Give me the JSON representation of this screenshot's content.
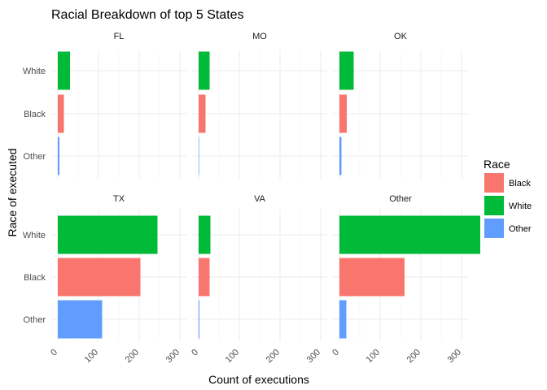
{
  "chart_data": {
    "type": "bar",
    "orientation": "horizontal",
    "title": "Racial Breakdown of top 5 States",
    "xlabel": "Count of executions",
    "ylabel": "Race of executed",
    "xlim": [
      0,
      330
    ],
    "x_ticks": [
      0,
      100,
      200,
      300
    ],
    "categories": [
      "White",
      "Black",
      "Other"
    ],
    "grid": true,
    "legend": {
      "title": "Race",
      "position": "right",
      "items": [
        {
          "label": "Black",
          "color": "#F8766D"
        },
        {
          "label": "White",
          "color": "#00BA38"
        },
        {
          "label": "Other",
          "color": "#619CFF"
        }
      ]
    },
    "colors": {
      "White": "#00BA38",
      "Black": "#F8766D",
      "Other": "#619CFF"
    },
    "facets": [
      {
        "name": "FL",
        "values": {
          "White": 30,
          "Black": 15,
          "Other": 4
        }
      },
      {
        "name": "MO",
        "values": {
          "White": 27,
          "Black": 17,
          "Other": 1
        }
      },
      {
        "name": "OK",
        "values": {
          "White": 35,
          "Black": 18,
          "Other": 5
        }
      },
      {
        "name": "TX",
        "values": {
          "White": 245,
          "Black": 203,
          "Other": 109
        }
      },
      {
        "name": "VA",
        "values": {
          "White": 29,
          "Black": 27,
          "Other": 2
        }
      },
      {
        "name": "Other",
        "values": {
          "White": 346,
          "Black": 160,
          "Other": 17
        }
      }
    ]
  }
}
